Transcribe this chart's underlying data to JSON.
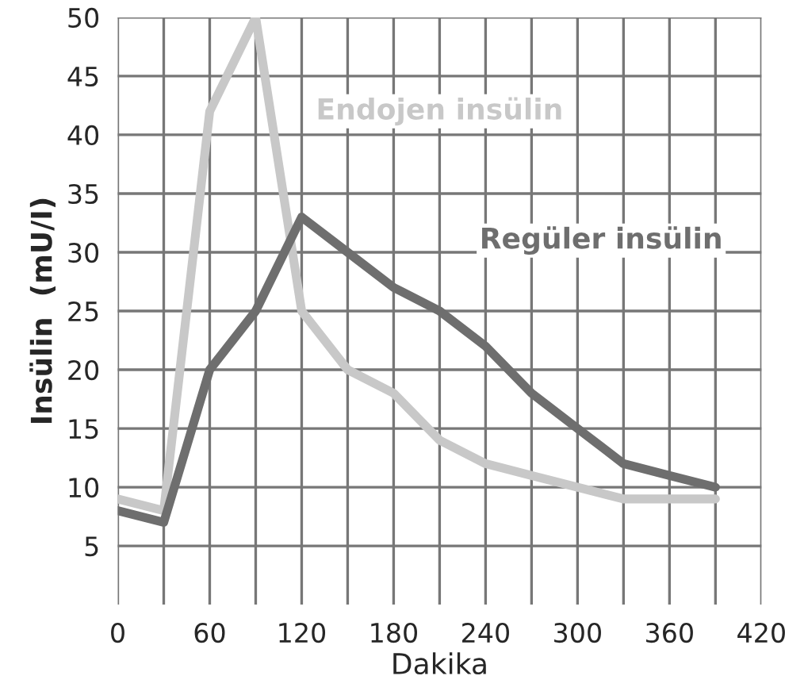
{
  "chart_data": {
    "type": "line",
    "xlabel": "Dakika",
    "ylabel": "Insülin  (mU/I)",
    "x": [
      0,
      30,
      60,
      90,
      120,
      150,
      180,
      210,
      240,
      270,
      300,
      330,
      360,
      390
    ],
    "series": [
      {
        "name": "Endojen insülin",
        "color": "#c8c8c8",
        "values": [
          9,
          8,
          42,
          50,
          25,
          20,
          18,
          14,
          12,
          11,
          10,
          9,
          9,
          9
        ]
      },
      {
        "name": "Regüler insülin",
        "color": "#6e6e6e",
        "values": [
          8,
          7,
          20,
          25,
          33,
          30,
          27,
          25,
          22,
          18,
          15,
          12,
          11,
          10
        ]
      }
    ],
    "xlim": [
      0,
      420
    ],
    "xticks": [
      0,
      {
        "value": 30,
        "label": null
      },
      60,
      {
        "value": 90,
        "label": null
      },
      120,
      {
        "value": 150,
        "label": null
      },
      180,
      {
        "value": 210,
        "label": null
      },
      240,
      {
        "value": 270,
        "label": null
      },
      300,
      {
        "value": 330,
        "label": null
      },
      360,
      {
        "value": 390,
        "label": null
      },
      420
    ],
    "ylim": [
      0,
      50
    ],
    "yticks": [
      5,
      10,
      15,
      20,
      25,
      30,
      35,
      40,
      45,
      50
    ],
    "grid": true,
    "legend": false,
    "marker": "none",
    "line_style": "solid"
  }
}
